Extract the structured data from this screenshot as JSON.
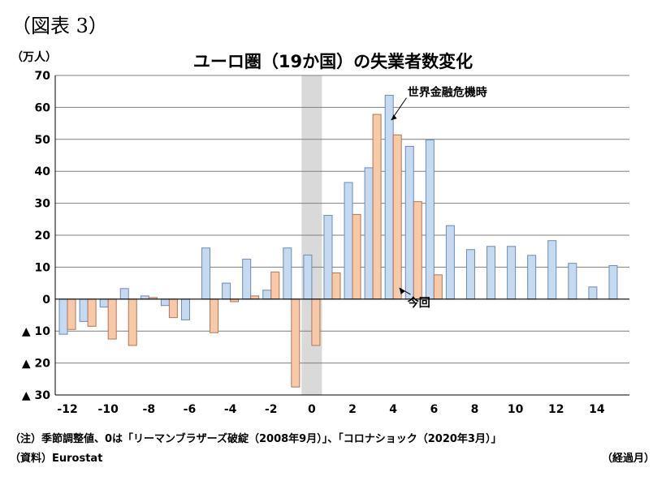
{
  "figure_label": "（図表 3）",
  "unit_label": "（万人）",
  "note": "（注）季節調整値、0は「リーマンブラザーズ破綻（2008年9月）」、「コロナショック（2020年3月）」",
  "source": "（資料）Eurostat",
  "x_unit": "（経過月）",
  "chart_data": {
    "type": "bar",
    "title": "ユーロ圏（19か国）の失業者数変化",
    "ylabel": "（万人）",
    "xlabel": "（経過月）",
    "ylim": [
      -30,
      70
    ],
    "xlim": [
      -12.6,
      15.6
    ],
    "y_ticks": [
      70,
      60,
      50,
      40,
      30,
      20,
      10,
      0,
      -10,
      -20,
      -30
    ],
    "y_tick_labels": [
      "70",
      "60",
      "50",
      "40",
      "30",
      "20",
      "10",
      "0",
      "▲ 10",
      "▲ 20",
      "▲ 30"
    ],
    "x_ticks": [
      -12,
      -10,
      -8,
      -6,
      -4,
      -2,
      0,
      2,
      4,
      6,
      8,
      10,
      12,
      14
    ],
    "x_tick_labels": [
      "-12",
      "-10",
      "-8",
      "-6",
      "-4",
      "-2",
      "0",
      "2",
      "4",
      "6",
      "8",
      "10",
      "12",
      "14"
    ],
    "grid": true,
    "shaded_month": 0,
    "colors": {
      "financial_crisis": "#C5DAF1",
      "financial_crisis_stroke": "#6D8BB5",
      "current": "#F8C9A6",
      "current_stroke": "#B0765A",
      "shade": "#D9D9D9",
      "grid": "#7F7F7F"
    },
    "categories": [
      -12,
      -11,
      -10,
      -9,
      -8,
      -7,
      -6,
      -5,
      -4,
      -3,
      -2,
      -1,
      0,
      1,
      2,
      3,
      4,
      5,
      6,
      7,
      8,
      9,
      10,
      11,
      12,
      13,
      14,
      15
    ],
    "series": [
      {
        "name": "世界金融危機時",
        "values": [
          -11,
          -7,
          -2.5,
          3.3,
          1,
          -2,
          -6.5,
          16,
          5,
          12.5,
          2.8,
          16,
          13.8,
          26.2,
          36.5,
          41.1,
          63.8,
          47.8,
          49.8,
          23,
          15.5,
          16.5,
          16.5,
          13.7,
          18.3,
          11.2,
          3.8,
          10.5
        ]
      },
      {
        "name": "今回",
        "values": [
          -9.5,
          -8.5,
          -12.5,
          -14.5,
          0.5,
          -5.8,
          null,
          -10.5,
          -0.8,
          1,
          8.5,
          -27.5,
          -14.5,
          8.2,
          26.5,
          57.8,
          51.4,
          30.5,
          7.6,
          null,
          null,
          null,
          null,
          null,
          null,
          null,
          null,
          null
        ]
      }
    ],
    "annotations": [
      {
        "text": "世界金融危機時",
        "x": 4,
        "y": 64
      },
      {
        "text": "今回",
        "x": 4,
        "y": 4
      }
    ]
  }
}
